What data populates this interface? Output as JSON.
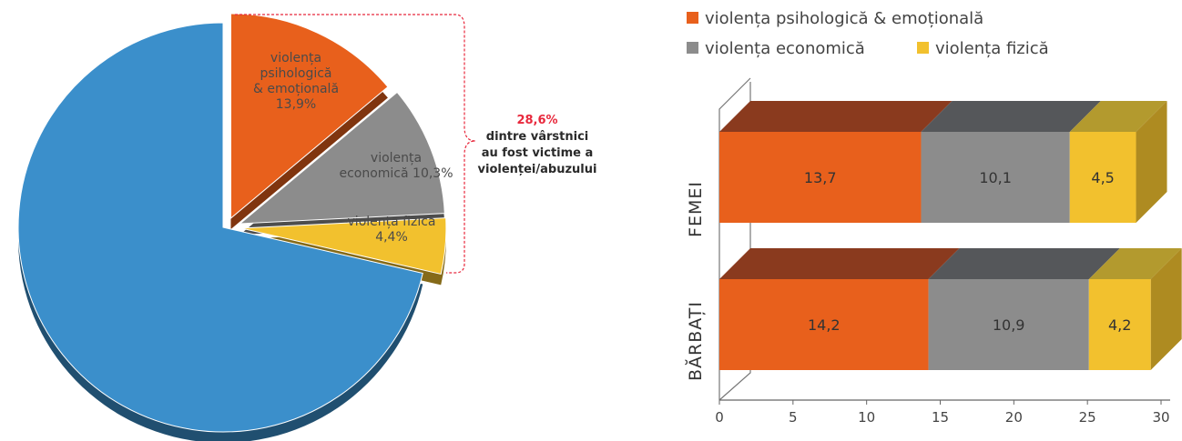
{
  "chart_data": [
    {
      "type": "pie",
      "slices": [
        {
          "label": "violența psihologică & emoțională",
          "lines": [
            "violența",
            "psihologică",
            "& emoțională",
            "13,9%"
          ],
          "value": 13.9,
          "color": "#e8601c",
          "exploded": true
        },
        {
          "label": "violența economică",
          "lines": [
            "violența",
            "economică 10,3%"
          ],
          "value": 10.3,
          "color": "#8c8c8c",
          "exploded": true
        },
        {
          "label": "violența fizică",
          "lines": [
            "violența fizică",
            "4,4%"
          ],
          "value": 4.4,
          "color": "#f2c12e",
          "exploded": true
        },
        {
          "label": "",
          "lines": [],
          "value": 71.4,
          "color": "#3b8fcb",
          "exploded": false
        }
      ],
      "callout": {
        "percent": "28,6%",
        "lines": [
          "dintre vârstnici",
          "au fost victime a",
          "violenței/abuzului"
        ]
      }
    },
    {
      "type": "bar",
      "orientation": "horizontal",
      "stacked": true,
      "categories": [
        "FEMEI",
        "BĂRBAȚI"
      ],
      "series": [
        {
          "name": "violența psihologică & emoțională",
          "values": [
            13.7,
            14.2
          ],
          "labels": [
            "13,7",
            "14,2"
          ],
          "color": "#e8601c",
          "top_color": "#8a3a1e"
        },
        {
          "name": "violența economică",
          "values": [
            10.1,
            10.9
          ],
          "labels": [
            "10,1",
            "10,9"
          ],
          "color": "#8c8c8c",
          "top_color": "#55575a"
        },
        {
          "name": "violența fizică",
          "values": [
            4.5,
            4.2
          ],
          "labels": [
            "4,5",
            "4,2"
          ],
          "color": "#f2c12e",
          "top_color": "#b39a2e"
        }
      ],
      "xlim": [
        0,
        30
      ],
      "xticks": [
        "0",
        "5",
        "10",
        "15",
        "20",
        "25",
        "30"
      ],
      "legend_position": "top",
      "grid": false
    }
  ]
}
